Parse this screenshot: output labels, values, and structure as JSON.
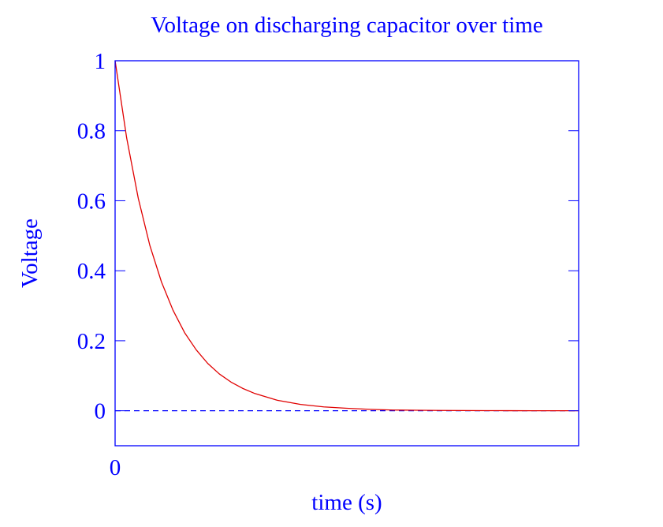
{
  "chart_data": {
    "type": "line",
    "title": "Voltage on discharging capacitor over time",
    "xlabel": "time (s)",
    "ylabel": "Voltage",
    "x_ticks": [
      "0"
    ],
    "y_ticks": [
      "1",
      "0.8",
      "0.6",
      "0.4",
      "0.2",
      "0"
    ],
    "y_tick_values": [
      1,
      0.8,
      0.6,
      0.4,
      0.2,
      0
    ],
    "xlim": [
      0,
      10
    ],
    "ylim": [
      -0.1,
      1
    ],
    "grid": false,
    "series": [
      {
        "color": "#e00000",
        "x": [
          0,
          0.25,
          0.5,
          0.75,
          1,
          1.25,
          1.5,
          1.75,
          2,
          2.25,
          2.5,
          2.75,
          3,
          3.5,
          4,
          4.5,
          5,
          5.5,
          6,
          6.5,
          7,
          7.5,
          8,
          8.5,
          9,
          9.5,
          10
        ],
        "y": [
          1.0,
          0.779,
          0.607,
          0.472,
          0.368,
          0.287,
          0.223,
          0.174,
          0.135,
          0.105,
          0.082,
          0.064,
          0.05,
          0.03,
          0.018,
          0.011,
          0.007,
          0.004,
          0.002,
          0.0015,
          0.0009,
          0.0006,
          0.0003,
          0.0002,
          0.0001,
          0.0001,
          0.0
        ]
      }
    ],
    "reference_line": {
      "y": 0,
      "style": "dashed",
      "color": "#0000ff"
    },
    "colors": {
      "axes": "#0000ff",
      "text": "#0000ff",
      "curve": "#e00000"
    }
  }
}
